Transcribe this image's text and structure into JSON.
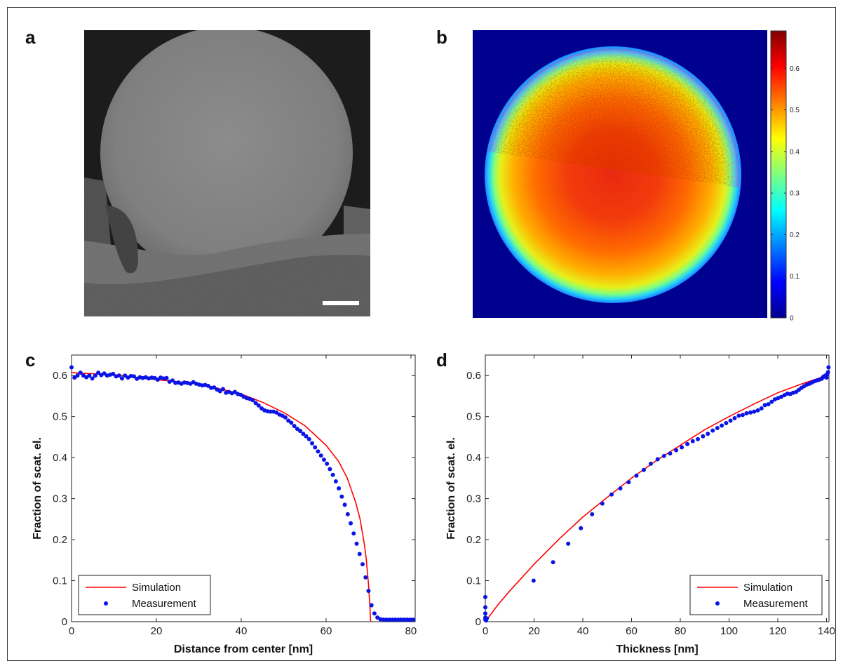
{
  "panels": {
    "a": {
      "letter": "a"
    },
    "b": {
      "letter": "b"
    },
    "c": {
      "letter": "c"
    },
    "d": {
      "letter": "d"
    }
  },
  "colors": {
    "simulation": "#ff0000",
    "measurement": "#0a14e6",
    "map_background": "#00008f"
  },
  "colorbar": {
    "ticks": [
      "0",
      "0.1",
      "0.2",
      "0.3",
      "0.4",
      "0.5",
      "0.6"
    ],
    "tick_values": [
      0,
      0.1,
      0.2,
      0.3,
      0.4,
      0.5,
      0.6
    ],
    "range": [
      0,
      0.69
    ]
  },
  "chart_data": [
    {
      "panel": "c",
      "type": "line",
      "xlabel": "Distance from center [nm]",
      "ylabel": "Fraction of scat. el.",
      "xlim": [
        0,
        81
      ],
      "ylim": [
        0,
        0.65
      ],
      "xticks": [
        "0",
        "20",
        "40",
        "60",
        "80"
      ],
      "xtick_values": [
        0,
        20,
        40,
        60,
        80
      ],
      "yticks": [
        "0",
        "0.1",
        "0.2",
        "0.3",
        "0.4",
        "0.5",
        "0.6"
      ],
      "ytick_values": [
        0,
        0.1,
        0.2,
        0.3,
        0.4,
        0.5,
        0.6
      ],
      "legend": {
        "placement": "bottom-left",
        "entries": [
          "Simulation",
          "Measurement"
        ]
      },
      "series": [
        {
          "name": "Simulation",
          "style": "line",
          "x": [
            0,
            10,
            20,
            30,
            40,
            45,
            50,
            55,
            60,
            63,
            65,
            67,
            68,
            69,
            69.5,
            70,
            70.3,
            70.5
          ],
          "y": [
            0.607,
            0.602,
            0.59,
            0.58,
            0.555,
            0.535,
            0.51,
            0.478,
            0.43,
            0.39,
            0.35,
            0.29,
            0.25,
            0.19,
            0.15,
            0.09,
            0.04,
            0.0
          ]
        },
        {
          "name": "Measurement",
          "style": "points",
          "x": [
            0,
            0.7,
            1.4,
            2.1,
            2.8,
            3.5,
            4.2,
            4.9,
            5.6,
            6.3,
            7.0,
            7.7,
            8.4,
            9.1,
            9.8,
            10.5,
            11.2,
            11.9,
            12.6,
            13.3,
            14.0,
            14.7,
            15.4,
            16.1,
            16.8,
            17.5,
            18.2,
            18.9,
            19.6,
            20.3,
            21.0,
            21.7,
            22.4,
            23.1,
            23.8,
            24.5,
            25.2,
            25.9,
            26.6,
            27.3,
            28.0,
            28.7,
            29.4,
            30.1,
            30.8,
            31.5,
            32.2,
            32.9,
            33.6,
            34.3,
            35.0,
            35.7,
            36.4,
            37.1,
            37.8,
            38.5,
            39.2,
            39.9,
            40.6,
            41.3,
            42.0,
            42.7,
            43.4,
            44.1,
            44.8,
            45.5,
            46.2,
            46.9,
            47.6,
            48.3,
            49.0,
            49.7,
            50.4,
            51.1,
            51.8,
            52.5,
            53.2,
            53.9,
            54.6,
            55.3,
            56.0,
            56.7,
            57.4,
            58.1,
            58.8,
            59.5,
            60.2,
            60.9,
            61.6,
            62.3,
            63.0,
            63.7,
            64.4,
            65.1,
            65.8,
            66.5,
            67.2,
            67.9,
            68.6,
            69.3,
            70.0,
            70.7,
            71.4,
            72.1,
            72.8,
            73.5,
            74.2,
            74.9,
            75.6,
            76.3,
            77.0,
            77.7,
            78.4,
            79.1,
            79.8,
            80.5
          ],
          "y": [
            0.62,
            0.595,
            0.6,
            0.607,
            0.6,
            0.596,
            0.6,
            0.593,
            0.6,
            0.607,
            0.601,
            0.605,
            0.6,
            0.602,
            0.604,
            0.598,
            0.6,
            0.593,
            0.6,
            0.595,
            0.599,
            0.598,
            0.592,
            0.596,
            0.594,
            0.596,
            0.593,
            0.595,
            0.594,
            0.59,
            0.595,
            0.593,
            0.594,
            0.585,
            0.588,
            0.582,
            0.583,
            0.58,
            0.583,
            0.582,
            0.58,
            0.584,
            0.58,
            0.578,
            0.576,
            0.577,
            0.575,
            0.57,
            0.571,
            0.566,
            0.562,
            0.567,
            0.558,
            0.56,
            0.557,
            0.56,
            0.555,
            0.553,
            0.548,
            0.545,
            0.543,
            0.54,
            0.533,
            0.527,
            0.52,
            0.515,
            0.513,
            0.512,
            0.512,
            0.51,
            0.505,
            0.502,
            0.498,
            0.49,
            0.485,
            0.477,
            0.47,
            0.465,
            0.458,
            0.452,
            0.445,
            0.435,
            0.425,
            0.415,
            0.405,
            0.395,
            0.385,
            0.372,
            0.358,
            0.342,
            0.325,
            0.305,
            0.285,
            0.262,
            0.24,
            0.215,
            0.19,
            0.165,
            0.14,
            0.108,
            0.075,
            0.04,
            0.02,
            0.01,
            0.006,
            0.005,
            0.005,
            0.005,
            0.005,
            0.005,
            0.005,
            0.005,
            0.005,
            0.005,
            0.005,
            0.005
          ]
        }
      ]
    },
    {
      "panel": "d",
      "type": "line",
      "xlabel": "Thickness [nm]",
      "ylabel": "Fraction of scat. el.",
      "xlim": [
        0,
        141
      ],
      "ylim": [
        0,
        0.65
      ],
      "xticks": [
        "0",
        "20",
        "40",
        "60",
        "80",
        "100",
        "120",
        "140"
      ],
      "xtick_values": [
        0,
        20,
        40,
        60,
        80,
        100,
        120,
        140
      ],
      "yticks": [
        "0",
        "0.1",
        "0.2",
        "0.3",
        "0.4",
        "0.5",
        "0.6"
      ],
      "ytick_values": [
        0,
        0.1,
        0.2,
        0.3,
        0.4,
        0.5,
        0.6
      ],
      "legend": {
        "placement": "bottom-right",
        "entries": [
          "Simulation",
          "Measurement"
        ]
      },
      "series": [
        {
          "name": "Simulation",
          "style": "line",
          "x": [
            0,
            5,
            10,
            20,
            30,
            40,
            50,
            60,
            70,
            80,
            90,
            100,
            110,
            120,
            130,
            140
          ],
          "y": [
            0.0,
            0.04,
            0.075,
            0.14,
            0.2,
            0.255,
            0.303,
            0.35,
            0.392,
            0.43,
            0.468,
            0.5,
            0.53,
            0.558,
            0.58,
            0.6
          ]
        },
        {
          "name": "Measurement",
          "style": "points",
          "x": [
            0,
            0,
            0,
            0,
            0,
            0.3,
            0.6,
            19.8,
            27.8,
            34,
            39.2,
            43.8,
            48,
            51.8,
            55.4,
            58.8,
            62,
            65,
            67.9,
            70.7,
            73.3,
            75.8,
            78.3,
            80.6,
            82.9,
            85.1,
            87.2,
            89.3,
            91.3,
            93.3,
            95.2,
            97,
            98.8,
            100.6,
            102.3,
            104,
            105.6,
            107.2,
            108.8,
            110.3,
            111.8,
            113.3,
            114.7,
            116.1,
            117.5,
            118.8,
            120.1,
            121.4,
            122.7,
            123.9,
            125.1,
            126.3,
            127.5,
            128.6,
            129.7,
            130.8,
            131.9,
            133,
            134,
            135,
            136,
            137,
            138,
            138.5,
            139,
            139.5,
            140,
            140.3,
            140.6,
            140.8
          ],
          "y": [
            0.005,
            0.01,
            0.02,
            0.035,
            0.06,
            0.003,
            0.008,
            0.1,
            0.145,
            0.19,
            0.228,
            0.262,
            0.288,
            0.31,
            0.325,
            0.34,
            0.356,
            0.37,
            0.385,
            0.396,
            0.404,
            0.41,
            0.418,
            0.425,
            0.433,
            0.44,
            0.445,
            0.452,
            0.458,
            0.466,
            0.472,
            0.478,
            0.484,
            0.49,
            0.496,
            0.502,
            0.504,
            0.508,
            0.51,
            0.512,
            0.515,
            0.52,
            0.528,
            0.53,
            0.536,
            0.542,
            0.545,
            0.548,
            0.552,
            0.556,
            0.555,
            0.558,
            0.56,
            0.565,
            0.57,
            0.574,
            0.578,
            0.58,
            0.583,
            0.586,
            0.588,
            0.59,
            0.592,
            0.596,
            0.598,
            0.6,
            0.595,
            0.603,
            0.608,
            0.62
          ]
        }
      ]
    }
  ]
}
